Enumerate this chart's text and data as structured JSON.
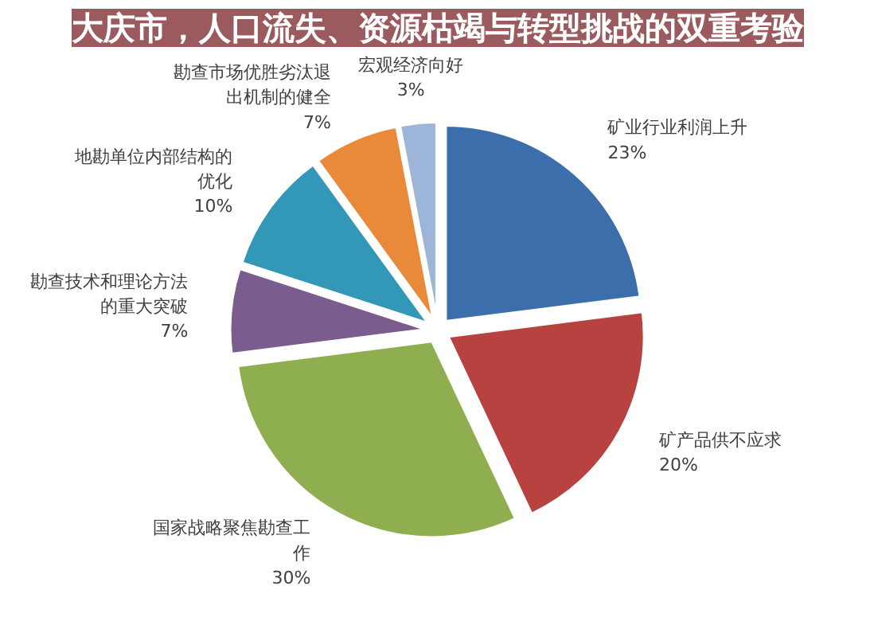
{
  "chart_data": {
    "type": "pie",
    "title": "大庆市，人口流失、资源枯竭与转型挑战的双重考验",
    "categories": [
      "矿业行业利润上升",
      "矿产品供不应求",
      "国家战略聚焦勘查工作",
      "勘查技术和理论方法的重大突破",
      "地勘单位内部结构的优化",
      "勘查市场优胜劣汰退出机制的健全",
      "宏观经济向好"
    ],
    "values": [
      23,
      20,
      30,
      7,
      10,
      7,
      3
    ],
    "value_labels": [
      "23%",
      "20%",
      "30%",
      "7%",
      "10%",
      "7%",
      "3%"
    ],
    "colors": [
      "#3c6eab",
      "#b8423f",
      "#8fae4f",
      "#7a5c8e",
      "#3397b8",
      "#e98a3a",
      "#9db5d8"
    ]
  }
}
